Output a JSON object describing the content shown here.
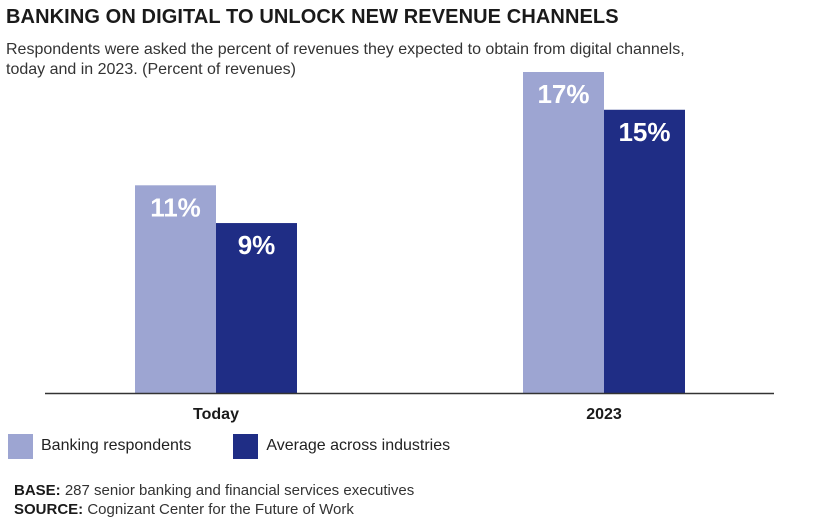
{
  "header": {
    "title": "BANKING ON DIGITAL TO UNLOCK NEW REVENUE CHANNELS",
    "subtitle": "Respondents were asked the percent of revenues they expected to obtain from digital channels, today and in 2023. (Percent of revenues)"
  },
  "colors": {
    "banking": "#9da5d2",
    "average": "#1f2d85",
    "axis": "#333333"
  },
  "legend": [
    {
      "label": "Banking respondents",
      "color": "#9da5d2"
    },
    {
      "label": "Average across industries",
      "color": "#1f2d85"
    }
  ],
  "footer": {
    "base_label": "BASE:",
    "base_text": "287 senior banking and financial services executives",
    "source_label": "SOURCE:",
    "source_text": "Cognizant Center for the Future of Work"
  },
  "chart_data": {
    "type": "bar",
    "title": "BANKING ON DIGITAL TO UNLOCK NEW REVENUE CHANNELS",
    "categories": [
      "Today",
      "2023"
    ],
    "series": [
      {
        "name": "Banking respondents",
        "values": [
          11,
          17
        ],
        "labels": [
          "11%",
          "17%"
        ]
      },
      {
        "name": "Average across industries",
        "values": [
          9,
          15
        ],
        "labels": [
          "9%",
          "15%"
        ]
      }
    ],
    "ylim": [
      0,
      17
    ],
    "grid": false,
    "legend_position": "bottom-left"
  }
}
